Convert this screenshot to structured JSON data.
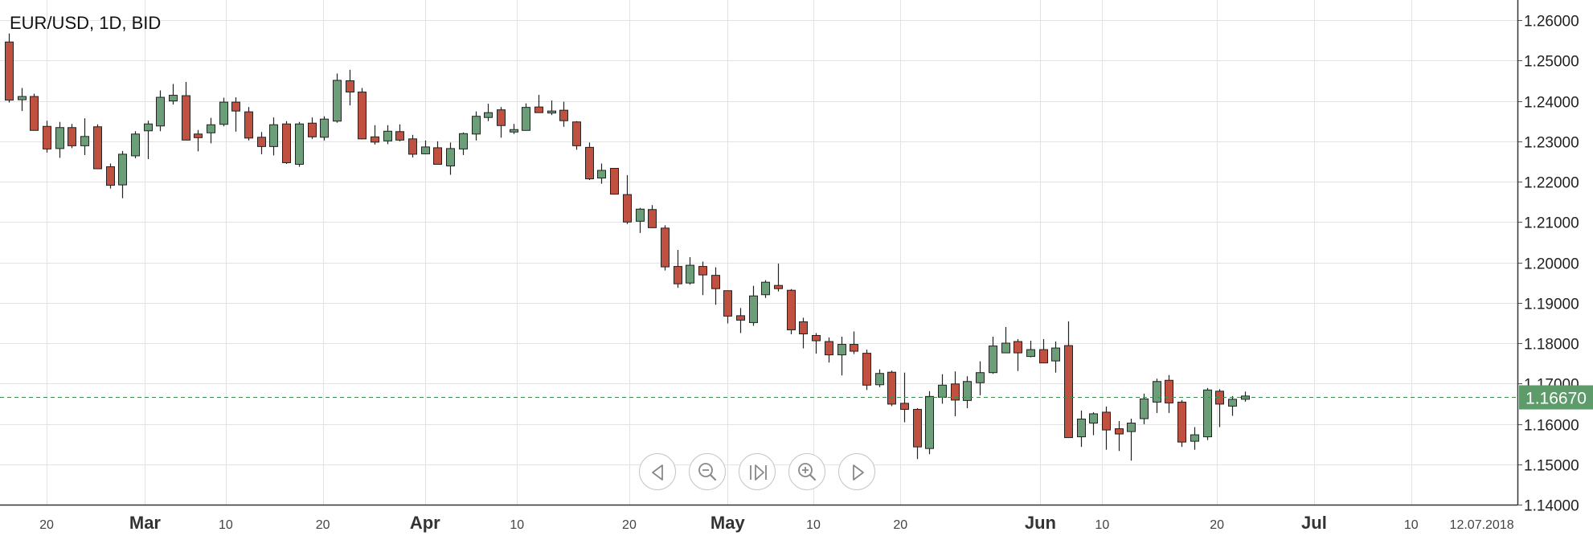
{
  "title": "EUR/USD, 1D, BID",
  "price_label": "1.16670",
  "colors": {
    "up_fill": "#6d9e7a",
    "down_fill": "#c0503f",
    "candle_border": "#222222",
    "grid": "#e3e3e3",
    "current_line": "#3e8f4f",
    "price_tag": "#5e9b6b"
  },
  "nav_icons": [
    "prev-icon",
    "zoom-out-icon",
    "reset-icon",
    "zoom-in-icon",
    "next-icon"
  ],
  "chart_data": {
    "type": "candlestick",
    "instrument": "EUR/USD",
    "timeframe": "1D",
    "price_type": "BID",
    "ylim": [
      1.14,
      1.265
    ],
    "y_ticks": [
      "1.14000",
      "1.15000",
      "1.16000",
      "1.17000",
      "1.18000",
      "1.19000",
      "1.20000",
      "1.21000",
      "1.22000",
      "1.23000",
      "1.24000",
      "1.25000",
      "1.26000"
    ],
    "y_tick_values": [
      1.14,
      1.15,
      1.16,
      1.17,
      1.18,
      1.19,
      1.2,
      1.21,
      1.22,
      1.23,
      1.24,
      1.25,
      1.26
    ],
    "x_ticks": [
      {
        "label": "20",
        "bold": false,
        "bar": 3.0
      },
      {
        "label": "Mar",
        "bold": true,
        "bar": 10.8
      },
      {
        "label": "10",
        "bold": false,
        "bar": 17.2
      },
      {
        "label": "20",
        "bold": false,
        "bar": 24.9
      },
      {
        "label": "Apr",
        "bold": true,
        "bar": 33.0
      },
      {
        "label": "10",
        "bold": false,
        "bar": 40.3
      },
      {
        "label": "20",
        "bold": false,
        "bar": 49.2
      },
      {
        "label": "May",
        "bold": true,
        "bar": 57.0
      },
      {
        "label": "10",
        "bold": false,
        "bar": 63.8
      },
      {
        "label": "20",
        "bold": false,
        "bar": 70.7
      },
      {
        "label": "Jun",
        "bold": true,
        "bar": 81.8
      },
      {
        "label": "10",
        "bold": false,
        "bar": 86.7
      },
      {
        "label": "20",
        "bold": false,
        "bar": 95.8
      },
      {
        "label": "Jul",
        "bold": true,
        "bar": 103.5
      },
      {
        "label": "10",
        "bold": false,
        "bar": 111.2
      },
      {
        "label": "12.07.2018",
        "bold": false,
        "bar": 116.8
      }
    ],
    "current_price": 1.1667,
    "candles": [
      [
        1.2546,
        1.2567,
        1.2396,
        1.2402
      ],
      [
        1.2403,
        1.2432,
        1.2375,
        1.2411
      ],
      [
        1.2411,
        1.2418,
        1.2336,
        1.2327
      ],
      [
        1.2337,
        1.2351,
        1.2272,
        1.2281
      ],
      [
        1.2282,
        1.2348,
        1.2259,
        1.2334
      ],
      [
        1.2334,
        1.2343,
        1.2283,
        1.2289
      ],
      [
        1.2289,
        1.2357,
        1.2266,
        1.2312
      ],
      [
        1.2336,
        1.2342,
        1.2233,
        1.2232
      ],
      [
        1.2237,
        1.2245,
        1.2183,
        1.2191
      ],
      [
        1.2192,
        1.2276,
        1.2159,
        1.2268
      ],
      [
        1.2264,
        1.2325,
        1.2258,
        1.2318
      ],
      [
        1.2326,
        1.2351,
        1.2256,
        1.2343
      ],
      [
        1.2338,
        1.2426,
        1.2325,
        1.2409
      ],
      [
        1.24,
        1.2442,
        1.2391,
        1.2414
      ],
      [
        1.2413,
        1.2447,
        1.2304,
        1.2303
      ],
      [
        1.2318,
        1.2328,
        1.2275,
        1.2309
      ],
      [
        1.2321,
        1.2358,
        1.2295,
        1.2341
      ],
      [
        1.2342,
        1.2408,
        1.2337,
        1.2397
      ],
      [
        1.2397,
        1.2409,
        1.2324,
        1.2375
      ],
      [
        1.2373,
        1.2385,
        1.2302,
        1.2308
      ],
      [
        1.231,
        1.2323,
        1.2268,
        1.2287
      ],
      [
        1.2287,
        1.2359,
        1.2265,
        1.2341
      ],
      [
        1.2343,
        1.235,
        1.2244,
        1.2247
      ],
      [
        1.2243,
        1.2348,
        1.2237,
        1.2343
      ],
      [
        1.2345,
        1.2359,
        1.2306,
        1.2311
      ],
      [
        1.231,
        1.2362,
        1.2302,
        1.2355
      ],
      [
        1.235,
        1.2468,
        1.2346,
        1.2451
      ],
      [
        1.245,
        1.2477,
        1.2389,
        1.2422
      ],
      [
        1.2422,
        1.2432,
        1.2305,
        1.2306
      ],
      [
        1.2311,
        1.234,
        1.2292,
        1.2298
      ],
      [
        1.2301,
        1.234,
        1.2293,
        1.2325
      ],
      [
        1.2324,
        1.2342,
        1.23,
        1.2303
      ],
      [
        1.2306,
        1.2316,
        1.226,
        1.2268
      ],
      [
        1.2269,
        1.2302,
        1.2268,
        1.2286
      ],
      [
        1.2284,
        1.23,
        1.2248,
        1.2243
      ],
      [
        1.2239,
        1.2297,
        1.2217,
        1.2282
      ],
      [
        1.2281,
        1.2322,
        1.2266,
        1.2319
      ],
      [
        1.2318,
        1.2374,
        1.2302,
        1.2362
      ],
      [
        1.2359,
        1.2393,
        1.235,
        1.2371
      ],
      [
        1.2378,
        1.2385,
        1.2309,
        1.2339
      ],
      [
        1.2323,
        1.2343,
        1.2318,
        1.2329
      ],
      [
        1.2327,
        1.2394,
        1.2327,
        1.2384
      ],
      [
        1.2385,
        1.2415,
        1.2371,
        1.2371
      ],
      [
        1.237,
        1.2401,
        1.2365,
        1.2375
      ],
      [
        1.2377,
        1.2398,
        1.2336,
        1.2351
      ],
      [
        1.2348,
        1.235,
        1.2279,
        1.2289
      ],
      [
        1.2285,
        1.2297,
        1.2204,
        1.2207
      ],
      [
        1.2209,
        1.2245,
        1.2195,
        1.2228
      ],
      [
        1.2233,
        1.2234,
        1.2168,
        1.2169
      ],
      [
        1.2168,
        1.2216,
        1.2095,
        1.21
      ],
      [
        1.2102,
        1.2135,
        1.2073,
        1.2132
      ],
      [
        1.2131,
        1.2142,
        1.2085,
        1.2086
      ],
      [
        1.2085,
        1.2092,
        1.198,
        1.1989
      ],
      [
        1.199,
        1.2031,
        1.1937,
        1.1947
      ],
      [
        1.1949,
        1.2013,
        1.1945,
        1.1993
      ],
      [
        1.199,
        1.2002,
        1.1919,
        1.1969
      ],
      [
        1.1968,
        1.1988,
        1.1895,
        1.1935
      ],
      [
        1.193,
        1.193,
        1.1849,
        1.1867
      ],
      [
        1.1868,
        1.1887,
        1.1825,
        1.1857
      ],
      [
        1.1851,
        1.1942,
        1.1843,
        1.1917
      ],
      [
        1.192,
        1.1956,
        1.1912,
        1.1951
      ],
      [
        1.1943,
        1.1997,
        1.1928,
        1.1935
      ],
      [
        1.1931,
        1.1934,
        1.1822,
        1.1833
      ],
      [
        1.1853,
        1.1863,
        1.1787,
        1.1823
      ],
      [
        1.1819,
        1.1825,
        1.1774,
        1.1806
      ],
      [
        1.1804,
        1.1814,
        1.1752,
        1.1771
      ],
      [
        1.1771,
        1.1816,
        1.172,
        1.1797
      ],
      [
        1.1797,
        1.1829,
        1.1773,
        1.178
      ],
      [
        1.1775,
        1.1784,
        1.1684,
        1.1696
      ],
      [
        1.1697,
        1.1735,
        1.1691,
        1.1725
      ],
      [
        1.1728,
        1.1732,
        1.1644,
        1.1649
      ],
      [
        1.1651,
        1.1727,
        1.1604,
        1.1636
      ],
      [
        1.1636,
        1.1639,
        1.1513,
        1.1543
      ],
      [
        1.1539,
        1.1681,
        1.1525,
        1.1668
      ],
      [
        1.1666,
        1.1723,
        1.165,
        1.1696
      ],
      [
        1.1699,
        1.173,
        1.1619,
        1.1659
      ],
      [
        1.1658,
        1.1718,
        1.1639,
        1.1705
      ],
      [
        1.1702,
        1.1755,
        1.1671,
        1.1727
      ],
      [
        1.1727,
        1.1816,
        1.1724,
        1.1793
      ],
      [
        1.1776,
        1.184,
        1.1777,
        1.18
      ],
      [
        1.1804,
        1.181,
        1.1731,
        1.1776
      ],
      [
        1.1767,
        1.1806,
        1.1765,
        1.1784
      ],
      [
        1.1784,
        1.181,
        1.1752,
        1.1751
      ],
      [
        1.1756,
        1.1804,
        1.1727,
        1.1788
      ],
      [
        1.1794,
        1.1854,
        1.1568,
        1.1566
      ],
      [
        1.1568,
        1.1633,
        1.1543,
        1.1612
      ],
      [
        1.1602,
        1.1629,
        1.1572,
        1.1625
      ],
      [
        1.1629,
        1.1643,
        1.1536,
        1.1585
      ],
      [
        1.1588,
        1.1607,
        1.1533,
        1.1575
      ],
      [
        1.1581,
        1.1613,
        1.1509,
        1.1602
      ],
      [
        1.1613,
        1.1675,
        1.1599,
        1.1662
      ],
      [
        1.1654,
        1.1712,
        1.1627,
        1.1705
      ],
      [
        1.1708,
        1.1721,
        1.1627,
        1.1652
      ],
      [
        1.1654,
        1.1659,
        1.1543,
        1.1555
      ],
      [
        1.1557,
        1.1592,
        1.1536,
        1.1573
      ],
      [
        1.1568,
        1.1689,
        1.156,
        1.1684
      ],
      [
        1.1681,
        1.1686,
        1.1592,
        1.1649
      ],
      [
        1.1644,
        1.1669,
        1.162,
        1.1661
      ],
      [
        1.1661,
        1.168,
        1.1655,
        1.1669
      ]
    ]
  }
}
